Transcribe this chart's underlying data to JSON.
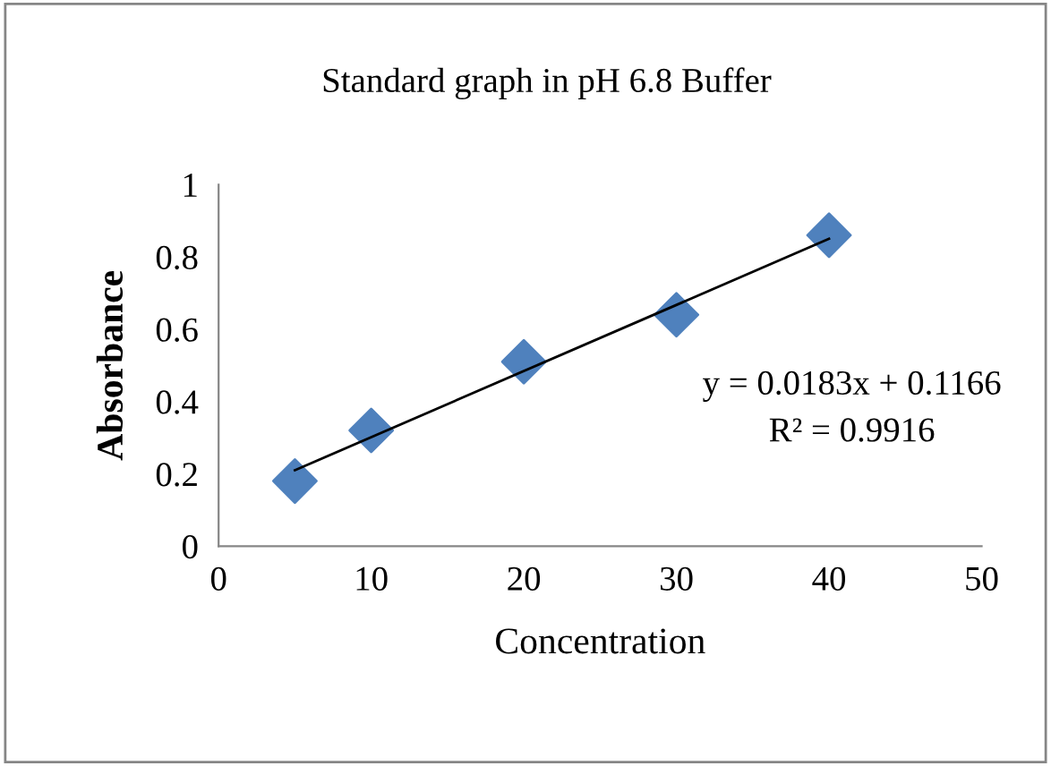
{
  "chart_data": {
    "type": "scatter",
    "title": "Standard graph in pH 6.8 Buffer",
    "xlabel": "Concentration",
    "ylabel": "Absorbance",
    "xlim": [
      0,
      50
    ],
    "xticks": [
      0,
      10,
      20,
      30,
      40,
      50
    ],
    "ylim": [
      0,
      1
    ],
    "yticks": [
      0,
      0.2,
      0.4,
      0.6,
      0.8,
      1
    ],
    "grid": false,
    "series": [
      {
        "color": "#4f81bd",
        "marker": "diamond",
        "x": [
          5,
          10,
          20,
          30,
          40
        ],
        "values": [
          0.18,
          0.32,
          0.51,
          0.64,
          0.86
        ]
      },
      {
        "type": "line",
        "marker": "none",
        "color": "#000000",
        "x": [
          5,
          40
        ],
        "values": [
          0.21,
          0.85
        ]
      }
    ],
    "annotations": [
      "y = 0.0183x + 0.1166",
      "R² = 0.9916"
    ]
  }
}
